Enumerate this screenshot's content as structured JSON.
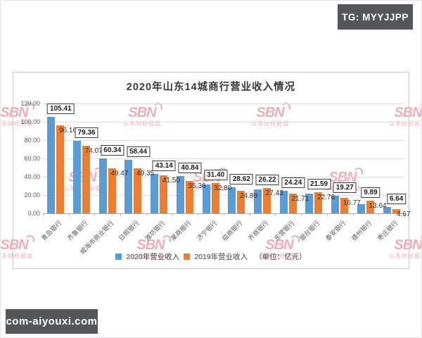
{
  "badges": {
    "tg": "TG: MYYJJPP",
    "site": "com-aiyouxi.com"
  },
  "watermark": {
    "logo": "SBN",
    "name": "山东财经报道"
  },
  "chart_data": {
    "type": "bar",
    "title": "2020年山东14城商行营业收入情况",
    "unit_note": "（单位：亿元）",
    "categories": [
      "青岛银行",
      "齐鲁银行",
      "威海市商业银行",
      "日照银行",
      "潍坊银行",
      "莱商银行",
      "济宁银行",
      "临商银行",
      "齐商银行",
      "东营银行",
      "烟台银行",
      "泰安银行",
      "德州银行",
      "枣庄银行"
    ],
    "series": [
      {
        "name": "2020年营业收入",
        "color": "#5B9BD5",
        "values": [
          105.41,
          79.36,
          60.34,
          58.44,
          43.14,
          40.84,
          31.4,
          28.62,
          26.22,
          24.24,
          21.59,
          19.27,
          9.89,
          6.64
        ]
      },
      {
        "name": "2019年营业收入",
        "color": "#ED7D31",
        "values": [
          96.16,
          74.07,
          49.47,
          49.35,
          41.5,
          35.36,
          32.8,
          24.89,
          27.43,
          21.71,
          22.78,
          16.77,
          13.64,
          4.67
        ]
      }
    ],
    "ylim": [
      0,
      120
    ],
    "ytick_step": 20,
    "ytick_labels": [
      "0.00",
      "20.00",
      "40.00",
      "60.00",
      "80.00",
      "100.00",
      "120.00"
    ],
    "grid": true,
    "legend_position": "bottom"
  }
}
